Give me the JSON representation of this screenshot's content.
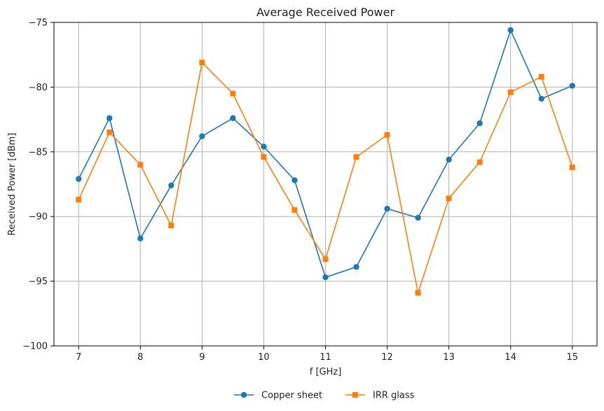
{
  "chart_data": {
    "type": "line",
    "title": "Average Received Power",
    "xlabel": "f [GHz]",
    "ylabel": "Received Power [dBm]",
    "xlim": [
      6.6,
      15.4
    ],
    "ylim": [
      -100,
      -75
    ],
    "xticks": [
      7,
      8,
      9,
      10,
      11,
      12,
      13,
      14,
      15
    ],
    "yticks": [
      -100,
      -95,
      -90,
      -85,
      -80,
      -75
    ],
    "xtick_labels": [
      "7",
      "8",
      "9",
      "10",
      "11",
      "12",
      "13",
      "14",
      "15"
    ],
    "ytick_labels": [
      "−100",
      "−95",
      "−90",
      "−85",
      "−80",
      "−75"
    ],
    "grid": true,
    "legend_position": "bottom-center",
    "x": [
      7,
      7.5,
      8,
      8.5,
      9,
      9.5,
      10,
      10.5,
      11,
      11.5,
      12,
      12.5,
      13,
      13.5,
      14,
      14.5,
      15
    ],
    "series": [
      {
        "name": "Copper sheet",
        "color": "#1f77b4",
        "marker": "circle",
        "values": [
          -87.1,
          -82.4,
          -91.7,
          -87.6,
          -83.8,
          -82.4,
          -84.6,
          -87.2,
          -94.7,
          -93.9,
          -89.4,
          -90.1,
          -85.6,
          -82.8,
          -75.6,
          -80.9,
          -79.9
        ]
      },
      {
        "name": "IRR glass",
        "color": "#ff7f0e",
        "marker": "square",
        "values": [
          -88.7,
          -83.5,
          -86.0,
          -90.7,
          -78.1,
          -80.5,
          -85.4,
          -89.5,
          -93.3,
          -85.4,
          -83.7,
          -95.9,
          -88.6,
          -85.8,
          -80.4,
          -79.2,
          -86.2
        ]
      }
    ]
  }
}
